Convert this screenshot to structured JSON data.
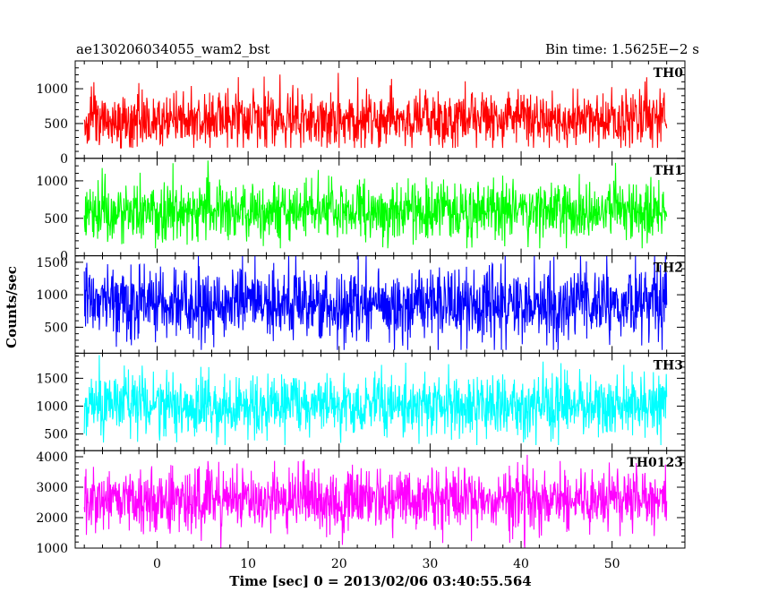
{
  "chart_data": {
    "type": "line",
    "title": "ae130206034055_wam2_bst",
    "subtitle": "Bin time: 1.5625E−2 s",
    "xlabel": "Time [sec] 0 = 2013/02/06 03:40:55.564",
    "ylabel": "Counts/sec",
    "xlim": [
      -9,
      58
    ],
    "data_x_range": [
      -8,
      56
    ],
    "x_ticks": [
      0,
      10,
      20,
      30,
      40,
      50
    ],
    "x_tick_labels": [
      "0",
      "10",
      "20",
      "30",
      "40",
      "50"
    ],
    "grid": false,
    "panels": [
      {
        "name": "TH0",
        "color": "#ff0000",
        "ylim": [
          0,
          1400
        ],
        "y_ticks": [
          0,
          500,
          1000
        ],
        "y_tick_labels": [
          "0",
          "500",
          "1000"
        ],
        "mean": 550,
        "spread": 200,
        "min": 150,
        "max": 1400
      },
      {
        "name": "TH1",
        "color": "#00ff00",
        "ylim": [
          0,
          1300
        ],
        "y_ticks": [
          0,
          500,
          1000
        ],
        "y_tick_labels": [
          "0",
          "500",
          "1000"
        ],
        "mean": 600,
        "spread": 200,
        "min": 100,
        "max": 1300
      },
      {
        "name": "TH2",
        "color": "#0000ff",
        "ylim": [
          100,
          1600
        ],
        "y_ticks": [
          500,
          1000,
          1500
        ],
        "y_tick_labels": [
          "500",
          "1000",
          "1500"
        ],
        "mean": 850,
        "spread": 280,
        "min": 150,
        "max": 1600
      },
      {
        "name": "TH3",
        "color": "#00ffff",
        "ylim": [
          200,
          1950
        ],
        "y_ticks": [
          500,
          1000,
          1500
        ],
        "y_tick_labels": [
          "500",
          "1000",
          "1500"
        ],
        "mean": 1000,
        "spread": 280,
        "min": 300,
        "max": 1950
      },
      {
        "name": "TH0123",
        "color": "#ff00ff",
        "ylim": [
          1000,
          4200
        ],
        "y_ticks": [
          1000,
          2000,
          3000,
          4000
        ],
        "y_tick_labels": [
          "1000",
          "2000",
          "3000",
          "4000"
        ],
        "mean": 2600,
        "spread": 500,
        "min": 1000,
        "max": 4200
      }
    ]
  }
}
